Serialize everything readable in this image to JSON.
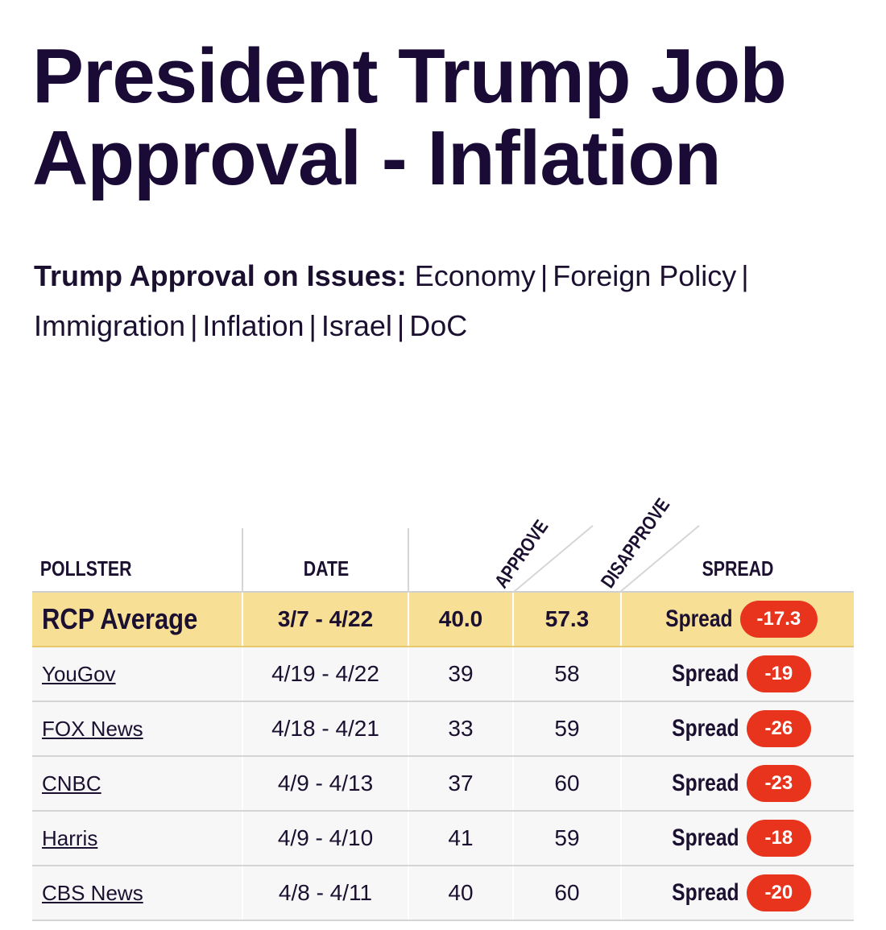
{
  "title": "President Trump Job Approval - Inflation",
  "issues": {
    "lead": "Trump Approval on Issues:",
    "links": [
      "Economy",
      "Foreign Policy",
      "Immigration",
      "Inflation",
      "Israel",
      "DoC"
    ]
  },
  "table": {
    "headers": {
      "pollster": "POLLSTER",
      "date": "DATE",
      "approve": "APPROVE",
      "disapprove": "DISAPPROVE",
      "spread": "SPREAD"
    },
    "average": {
      "pollster": "RCP Average",
      "date": "3/7 - 4/22",
      "approve": "40.0",
      "disapprove": "57.3",
      "spread_label": "Spread",
      "spread": "-17.3"
    },
    "rows": [
      {
        "pollster": "YouGov",
        "date": "4/19 - 4/22",
        "approve": "39",
        "disapprove": "58",
        "spread_label": "Spread",
        "spread": "-19"
      },
      {
        "pollster": "FOX News",
        "date": "4/18 - 4/21",
        "approve": "33",
        "disapprove": "59",
        "spread_label": "Spread",
        "spread": "-26"
      },
      {
        "pollster": "CNBC",
        "date": "4/9 - 4/13",
        "approve": "37",
        "disapprove": "60",
        "spread_label": "Spread",
        "spread": "-23"
      },
      {
        "pollster": "Harris",
        "date": "4/9 - 4/10",
        "approve": "41",
        "disapprove": "59",
        "spread_label": "Spread",
        "spread": "-18"
      },
      {
        "pollster": "CBS News",
        "date": "4/8 - 4/11",
        "approve": "40",
        "disapprove": "60",
        "spread_label": "Spread",
        "spread": "-20"
      }
    ]
  },
  "colors": {
    "title": "#1a0b36",
    "average_row": "#f7df96",
    "spread_pill": "#e8341c",
    "row_bg": "#f7f7f7"
  }
}
